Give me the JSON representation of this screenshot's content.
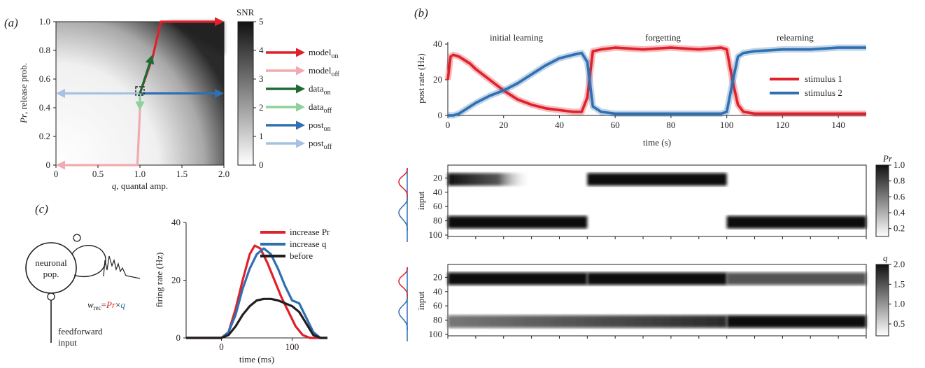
{
  "panel_labels": {
    "a": "(a)",
    "b": "(b)",
    "c": "(c)"
  },
  "colors": {
    "red": "#e0202a",
    "pink": "#f2aab0",
    "dark_green": "#1f6b36",
    "light_green": "#8fd19a",
    "blue": "#2f6fb2",
    "light_blue": "#a6c2e3",
    "black": "#231f20"
  },
  "chart_data": [
    {
      "id": "a",
      "type": "heatmap",
      "xlabel": "q, quantal amp.",
      "ylabel": "Pr, release prob.",
      "xlim": [
        0,
        2.0
      ],
      "ylim": [
        0,
        1.0
      ],
      "xticks": [
        "0",
        "0.5",
        "1.0",
        "1.5",
        "2.0"
      ],
      "yticks": [
        "0",
        "0.2",
        "0.4",
        "0.6",
        "0.8",
        "1.0"
      ],
      "colorbar": {
        "title": "SNR",
        "range": [
          0,
          5
        ],
        "ticks": [
          "0",
          "1",
          "2",
          "3",
          "4",
          "5"
        ]
      },
      "paths": [
        {
          "name": "model_on",
          "color": "red",
          "points": [
            [
              1.0,
              0.5
            ],
            [
              1.15,
              0.75
            ],
            [
              1.25,
              1.0
            ],
            [
              2.0,
              1.0
            ]
          ]
        },
        {
          "name": "model_off",
          "color": "pink",
          "points": [
            [
              1.0,
              0.5
            ],
            [
              1.0,
              0.38
            ],
            [
              0.97,
              0.0
            ],
            [
              0.0,
              0.0
            ]
          ]
        },
        {
          "name": "data_on",
          "color": "dark_green",
          "points": [
            [
              1.0,
              0.5
            ],
            [
              1.15,
              0.77
            ]
          ]
        },
        {
          "name": "data_off",
          "color": "light_green",
          "points": [
            [
              1.0,
              0.5
            ],
            [
              1.0,
              0.38
            ]
          ]
        },
        {
          "name": "post_on",
          "color": "blue",
          "points": [
            [
              1.0,
              0.5
            ],
            [
              2.0,
              0.5
            ]
          ]
        },
        {
          "name": "post_off",
          "color": "light_blue",
          "points": [
            [
              1.0,
              0.5
            ],
            [
              0.0,
              0.5
            ]
          ]
        }
      ],
      "legend": [
        {
          "main": "model",
          "sub": "on",
          "color": "red"
        },
        {
          "main": "model",
          "sub": "off",
          "color": "pink"
        },
        {
          "main": "data",
          "sub": "on",
          "color": "dark_green"
        },
        {
          "main": "data",
          "sub": "off",
          "color": "light_green"
        },
        {
          "main": "post",
          "sub": "on",
          "color": "blue"
        },
        {
          "main": "post",
          "sub": "off",
          "color": "light_blue"
        }
      ]
    },
    {
      "id": "b_top",
      "type": "line",
      "xlabel": "time (s)",
      "ylabel": "post rate (Hz)",
      "xlim": [
        0,
        150
      ],
      "ylim": [
        0,
        40
      ],
      "xticks": [
        "0",
        "20",
        "40",
        "60",
        "80",
        "100",
        "120",
        "140"
      ],
      "yticks": [
        "0",
        "20",
        "40"
      ],
      "phases": [
        "initial learning",
        "forgetting",
        "relearning"
      ],
      "series": [
        {
          "name": "stimulus 1",
          "color": "red",
          "x": [
            0,
            1,
            2,
            4,
            6,
            8,
            10,
            15,
            20,
            25,
            30,
            35,
            40,
            45,
            48,
            50,
            52,
            55,
            60,
            70,
            80,
            90,
            98,
            100,
            102,
            104,
            106,
            110,
            120,
            130,
            140,
            150
          ],
          "y": [
            20,
            33,
            34,
            33,
            31,
            29,
            26,
            20,
            14,
            9,
            6,
            4,
            3,
            2,
            2,
            10,
            36,
            37,
            38,
            37,
            38,
            37,
            38,
            37,
            20,
            6,
            2,
            1,
            1,
            1,
            1,
            1
          ]
        },
        {
          "name": "stimulus 2",
          "color": "blue",
          "x": [
            0,
            2,
            4,
            6,
            8,
            10,
            15,
            20,
            25,
            30,
            35,
            40,
            45,
            48,
            50,
            52,
            55,
            60,
            70,
            80,
            90,
            98,
            100,
            102,
            104,
            106,
            110,
            120,
            130,
            140,
            150
          ],
          "y": [
            0,
            0,
            1,
            3,
            5,
            7,
            11,
            14,
            18,
            23,
            28,
            32,
            34,
            35,
            30,
            5,
            2,
            1,
            1,
            1,
            1,
            1,
            2,
            18,
            33,
            35,
            36,
            37,
            37,
            38,
            38
          ]
        }
      ]
    },
    {
      "id": "b_pr",
      "type": "heatmap",
      "xlabel": "",
      "ylabel": "input",
      "ylim": [
        100,
        0
      ],
      "yticks": [
        "20",
        "40",
        "60",
        "80",
        "100"
      ],
      "colorbar": {
        "title": "Pr",
        "range": [
          0.1,
          1.0
        ],
        "ticks": [
          "0.2",
          "0.4",
          "0.6",
          "0.8",
          "1.0"
        ]
      },
      "bands": [
        {
          "x": [
            0,
            30
          ],
          "y_center": 20,
          "intensity": 1.0,
          "fade": true
        },
        {
          "x": [
            0,
            50
          ],
          "y_center": 80,
          "intensity": 1.0
        },
        {
          "x": [
            50,
            100
          ],
          "y_center": 20,
          "intensity": 1.0
        },
        {
          "x": [
            100,
            150
          ],
          "y_center": 80,
          "intensity": 1.0
        }
      ]
    },
    {
      "id": "b_q",
      "type": "heatmap",
      "xlabel": "",
      "ylabel": "input",
      "ylim": [
        100,
        0
      ],
      "yticks": [
        "20",
        "40",
        "60",
        "80",
        "100"
      ],
      "colorbar": {
        "title": "q",
        "range": [
          0.2,
          2.0
        ],
        "ticks": [
          "0.5",
          "1.0",
          "1.5",
          "2.0"
        ]
      },
      "bands": [
        {
          "x": [
            0,
            50
          ],
          "y_center": 20,
          "intensity": 1.0
        },
        {
          "x": [
            50,
            100
          ],
          "y_center": 20,
          "intensity": 1.0
        },
        {
          "x": [
            100,
            150
          ],
          "y_center": 20,
          "intensity": 0.7
        },
        {
          "x": [
            0,
            100
          ],
          "y_center": 80,
          "intensity": 0.4,
          "ramp": true
        },
        {
          "x": [
            100,
            150
          ],
          "y_center": 80,
          "intensity": 1.0
        }
      ]
    },
    {
      "id": "c",
      "type": "line",
      "xlabel": "time (ms)",
      "ylabel": "firing rate (Hz)",
      "xlim": [
        -50,
        150
      ],
      "ylim": [
        0,
        40
      ],
      "xticks": [
        "0",
        "100"
      ],
      "yticks": [
        "0",
        "20",
        "40"
      ],
      "series": [
        {
          "name": "increase Pr",
          "color": "red",
          "x": [
            -50,
            0,
            10,
            20,
            30,
            40,
            47,
            55,
            65,
            75,
            85,
            95,
            105,
            115,
            125,
            150
          ],
          "y": [
            0,
            0,
            2,
            10,
            20,
            29,
            32,
            31,
            26,
            20,
            14,
            9,
            4,
            1,
            0,
            0
          ]
        },
        {
          "name": "increase q",
          "color": "blue",
          "x": [
            -50,
            0,
            10,
            20,
            30,
            40,
            50,
            60,
            70,
            80,
            90,
            100,
            110,
            120,
            130,
            140,
            150
          ],
          "y": [
            0,
            0,
            2,
            8,
            17,
            24,
            29,
            31,
            29,
            24,
            18,
            13,
            12,
            7,
            2,
            0,
            0
          ]
        },
        {
          "name": "before",
          "color": "black",
          "x": [
            -50,
            0,
            10,
            20,
            30,
            40,
            50,
            60,
            70,
            80,
            90,
            100,
            110,
            120,
            130,
            140,
            150
          ],
          "y": [
            0,
            0,
            1,
            4,
            8,
            11,
            13,
            13.5,
            13.5,
            13,
            12,
            11,
            9,
            5,
            1,
            0,
            0
          ]
        }
      ]
    }
  ],
  "schematic": {
    "population": [
      "neuronal",
      "pop."
    ],
    "input_label": [
      "feedforward",
      "input"
    ],
    "w": "w",
    "w_sub": "rec",
    "eq": "=",
    "times": "×",
    "pr": "Pr",
    "q": "q"
  }
}
